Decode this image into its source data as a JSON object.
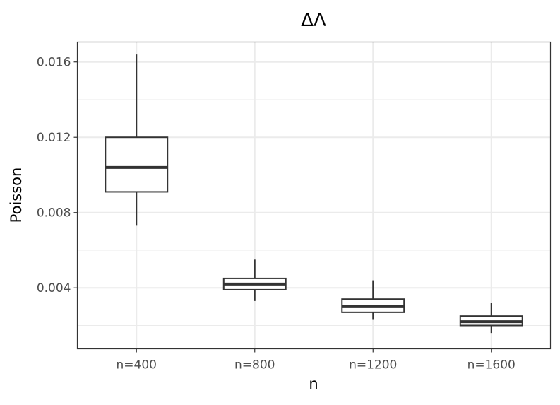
{
  "chart_data": {
    "type": "box",
    "title": "ΔΛ",
    "xlabel": "n",
    "ylabel": "Poisson",
    "categories": [
      "n=400",
      "n=800",
      "n=1200",
      "n=1600"
    ],
    "ylim": [
      0.00076,
      0.01706
    ],
    "yticks": [
      0.004,
      0.008,
      0.012,
      0.016
    ],
    "ytick_labels": [
      "0.004",
      "0.008",
      "0.012",
      "0.016"
    ],
    "minor_yticks": [
      0.002,
      0.006,
      0.01,
      0.014
    ],
    "grid": true,
    "boxes": [
      {
        "category": "n=400",
        "whisker_low": 0.0073,
        "q1": 0.0091,
        "median": 0.0104,
        "q3": 0.012,
        "whisker_high": 0.0164
      },
      {
        "category": "n=800",
        "whisker_low": 0.0033,
        "q1": 0.0039,
        "median": 0.0042,
        "q3": 0.0045,
        "whisker_high": 0.0055
      },
      {
        "category": "n=1200",
        "whisker_low": 0.0023,
        "q1": 0.0027,
        "median": 0.003,
        "q3": 0.0034,
        "whisker_high": 0.0044
      },
      {
        "category": "n=1600",
        "whisker_low": 0.0016,
        "q1": 0.002,
        "median": 0.0022,
        "q3": 0.0025,
        "whisker_high": 0.0032
      }
    ],
    "colors": {
      "box_fill": "#ffffff",
      "box_stroke": "#333333",
      "grid": "#ebebeb",
      "panel_border": "#333333",
      "tick_text": "#4d4d4d"
    }
  }
}
